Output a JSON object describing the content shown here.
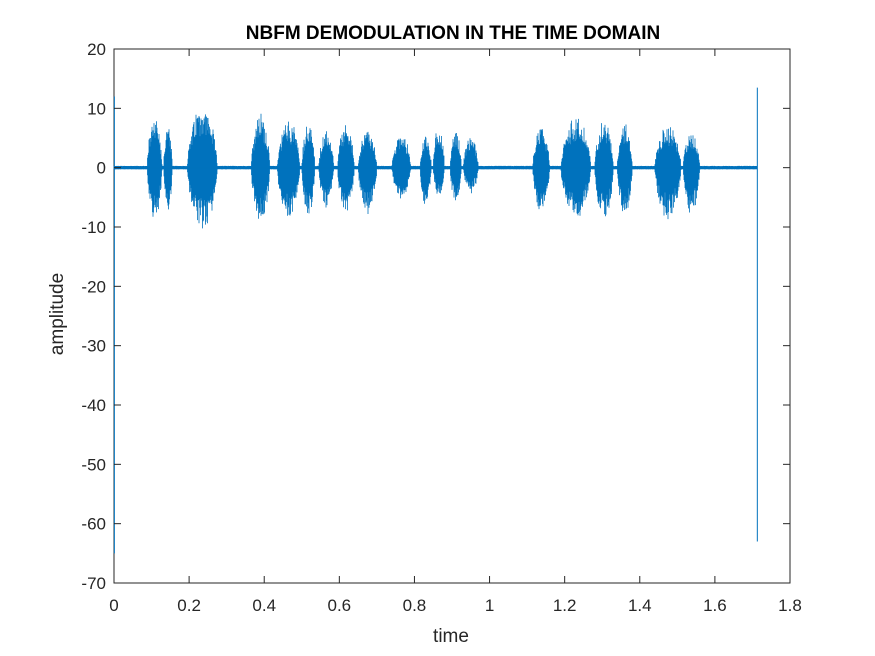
{
  "chart_data": {
    "type": "line",
    "title": "NBFM DEMODULATION IN THE TIME DOMAIN",
    "xlabel": "time",
    "ylabel": "amplitude",
    "xlim": [
      0,
      1.8
    ],
    "ylim": [
      -70,
      20
    ],
    "xticks": [
      "0",
      "0.2",
      "0.4",
      "0.6",
      "0.8",
      "1",
      "1.2",
      "1.4",
      "1.6",
      "1.8"
    ],
    "yticks": [
      "20",
      "10",
      "0",
      "-10",
      "-20",
      "-30",
      "-40",
      "-50",
      "-60",
      "-70"
    ],
    "grid": false,
    "legend": "none",
    "series": [
      {
        "color": "#0072BD",
        "bursts": [
          {
            "start": 0.088,
            "end": 0.128,
            "peak": 9,
            "trough": -9
          },
          {
            "start": 0.132,
            "end": 0.155,
            "peak": 7.5,
            "trough": -8
          },
          {
            "start": 0.195,
            "end": 0.275,
            "peak": 10.8,
            "trough": -11
          },
          {
            "start": 0.365,
            "end": 0.415,
            "peak": 9.5,
            "trough": -10
          },
          {
            "start": 0.435,
            "end": 0.495,
            "peak": 8.5,
            "trough": -9
          },
          {
            "start": 0.5,
            "end": 0.535,
            "peak": 7.8,
            "trough": -9
          },
          {
            "start": 0.545,
            "end": 0.585,
            "peak": 6.5,
            "trough": -7
          },
          {
            "start": 0.595,
            "end": 0.64,
            "peak": 7.5,
            "trough": -8
          },
          {
            "start": 0.65,
            "end": 0.7,
            "peak": 6.8,
            "trough": -8
          },
          {
            "start": 0.74,
            "end": 0.79,
            "peak": 6.2,
            "trough": -5.5
          },
          {
            "start": 0.815,
            "end": 0.845,
            "peak": 6,
            "trough": -7
          },
          {
            "start": 0.85,
            "end": 0.88,
            "peak": 7.5,
            "trough": -5
          },
          {
            "start": 0.895,
            "end": 0.925,
            "peak": 6.5,
            "trough": -6
          },
          {
            "start": 0.93,
            "end": 0.97,
            "peak": 5.5,
            "trough": -4.5
          },
          {
            "start": 1.115,
            "end": 1.16,
            "peak": 7.3,
            "trough": -8
          },
          {
            "start": 1.19,
            "end": 1.27,
            "peak": 8.8,
            "trough": -9
          },
          {
            "start": 1.28,
            "end": 1.33,
            "peak": 8.5,
            "trough": -9
          },
          {
            "start": 1.34,
            "end": 1.38,
            "peak": 8,
            "trough": -8.5
          },
          {
            "start": 1.44,
            "end": 1.51,
            "peak": 7.3,
            "trough": -9
          },
          {
            "start": 1.515,
            "end": 1.56,
            "peak": 6.3,
            "trough": -8
          }
        ],
        "transients": [
          {
            "x": 0.001,
            "max": 12,
            "min": -65
          },
          {
            "x": 1.713,
            "max": 13.5,
            "min": -63
          }
        ],
        "noise_floor": 0.3,
        "signal_end": 1.713
      }
    ]
  }
}
